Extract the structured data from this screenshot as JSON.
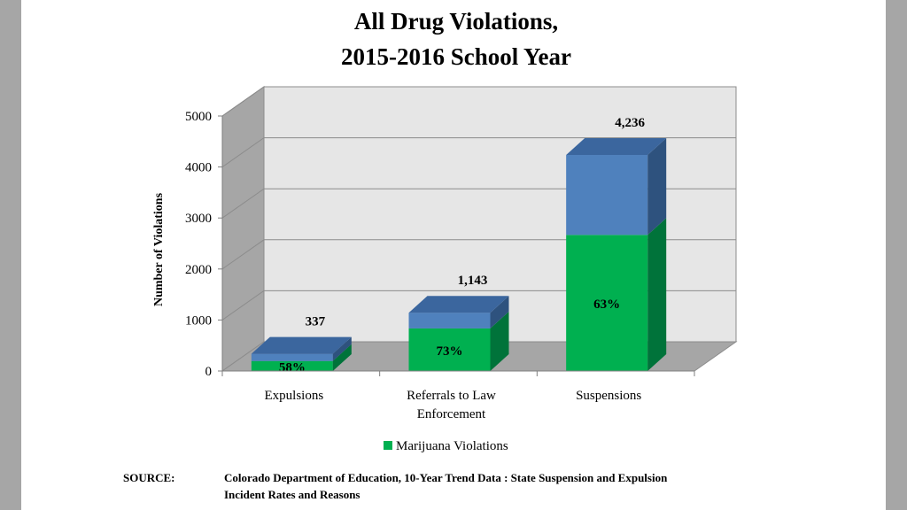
{
  "chart_data": {
    "type": "bar",
    "stacked": true,
    "three_d": true,
    "title_lines": [
      "All Drug Violations,",
      "2015-2016 School Year"
    ],
    "ylabel": "Number of Violations",
    "xlabel": "",
    "ylim": [
      0,
      5000
    ],
    "yticks": [
      0,
      1000,
      2000,
      3000,
      4000,
      5000
    ],
    "grid": true,
    "categories": [
      [
        "Expulsions"
      ],
      [
        "Referrals to Law",
        "Enforcement"
      ],
      [
        "Suspensions"
      ]
    ],
    "totals": [
      337,
      1143,
      4236
    ],
    "total_labels": [
      "337",
      "1,143",
      "4,236"
    ],
    "marijuana_share": [
      58,
      73,
      63
    ],
    "marijuana_share_labels": [
      "58%",
      "73%",
      "63%"
    ],
    "series": [
      {
        "name": "Marijuana Violations",
        "color": "#00b050",
        "side_color": "#00733a",
        "top_color": "#2d8a4e"
      },
      {
        "name": "",
        "color": "#4f81bd",
        "side_color": "#2e527e",
        "top_color": "#3b669e"
      }
    ],
    "legend": {
      "position": "bottom",
      "entries": [
        "Marijuana Violations"
      ]
    }
  },
  "source": {
    "label": "SOURCE:",
    "lines": [
      "Colorado Department of Education, 10-Year Trend Data : State Suspension and Expulsion",
      "Incident Rates and Reasons"
    ]
  },
  "colors": {
    "background": "#a6a6a6",
    "page": "#ffffff",
    "back_wall": "#e6e6e6",
    "side_wall": "#a6a6a6",
    "floor": "#a6a6a6",
    "grid": "#8c8c8c"
  }
}
